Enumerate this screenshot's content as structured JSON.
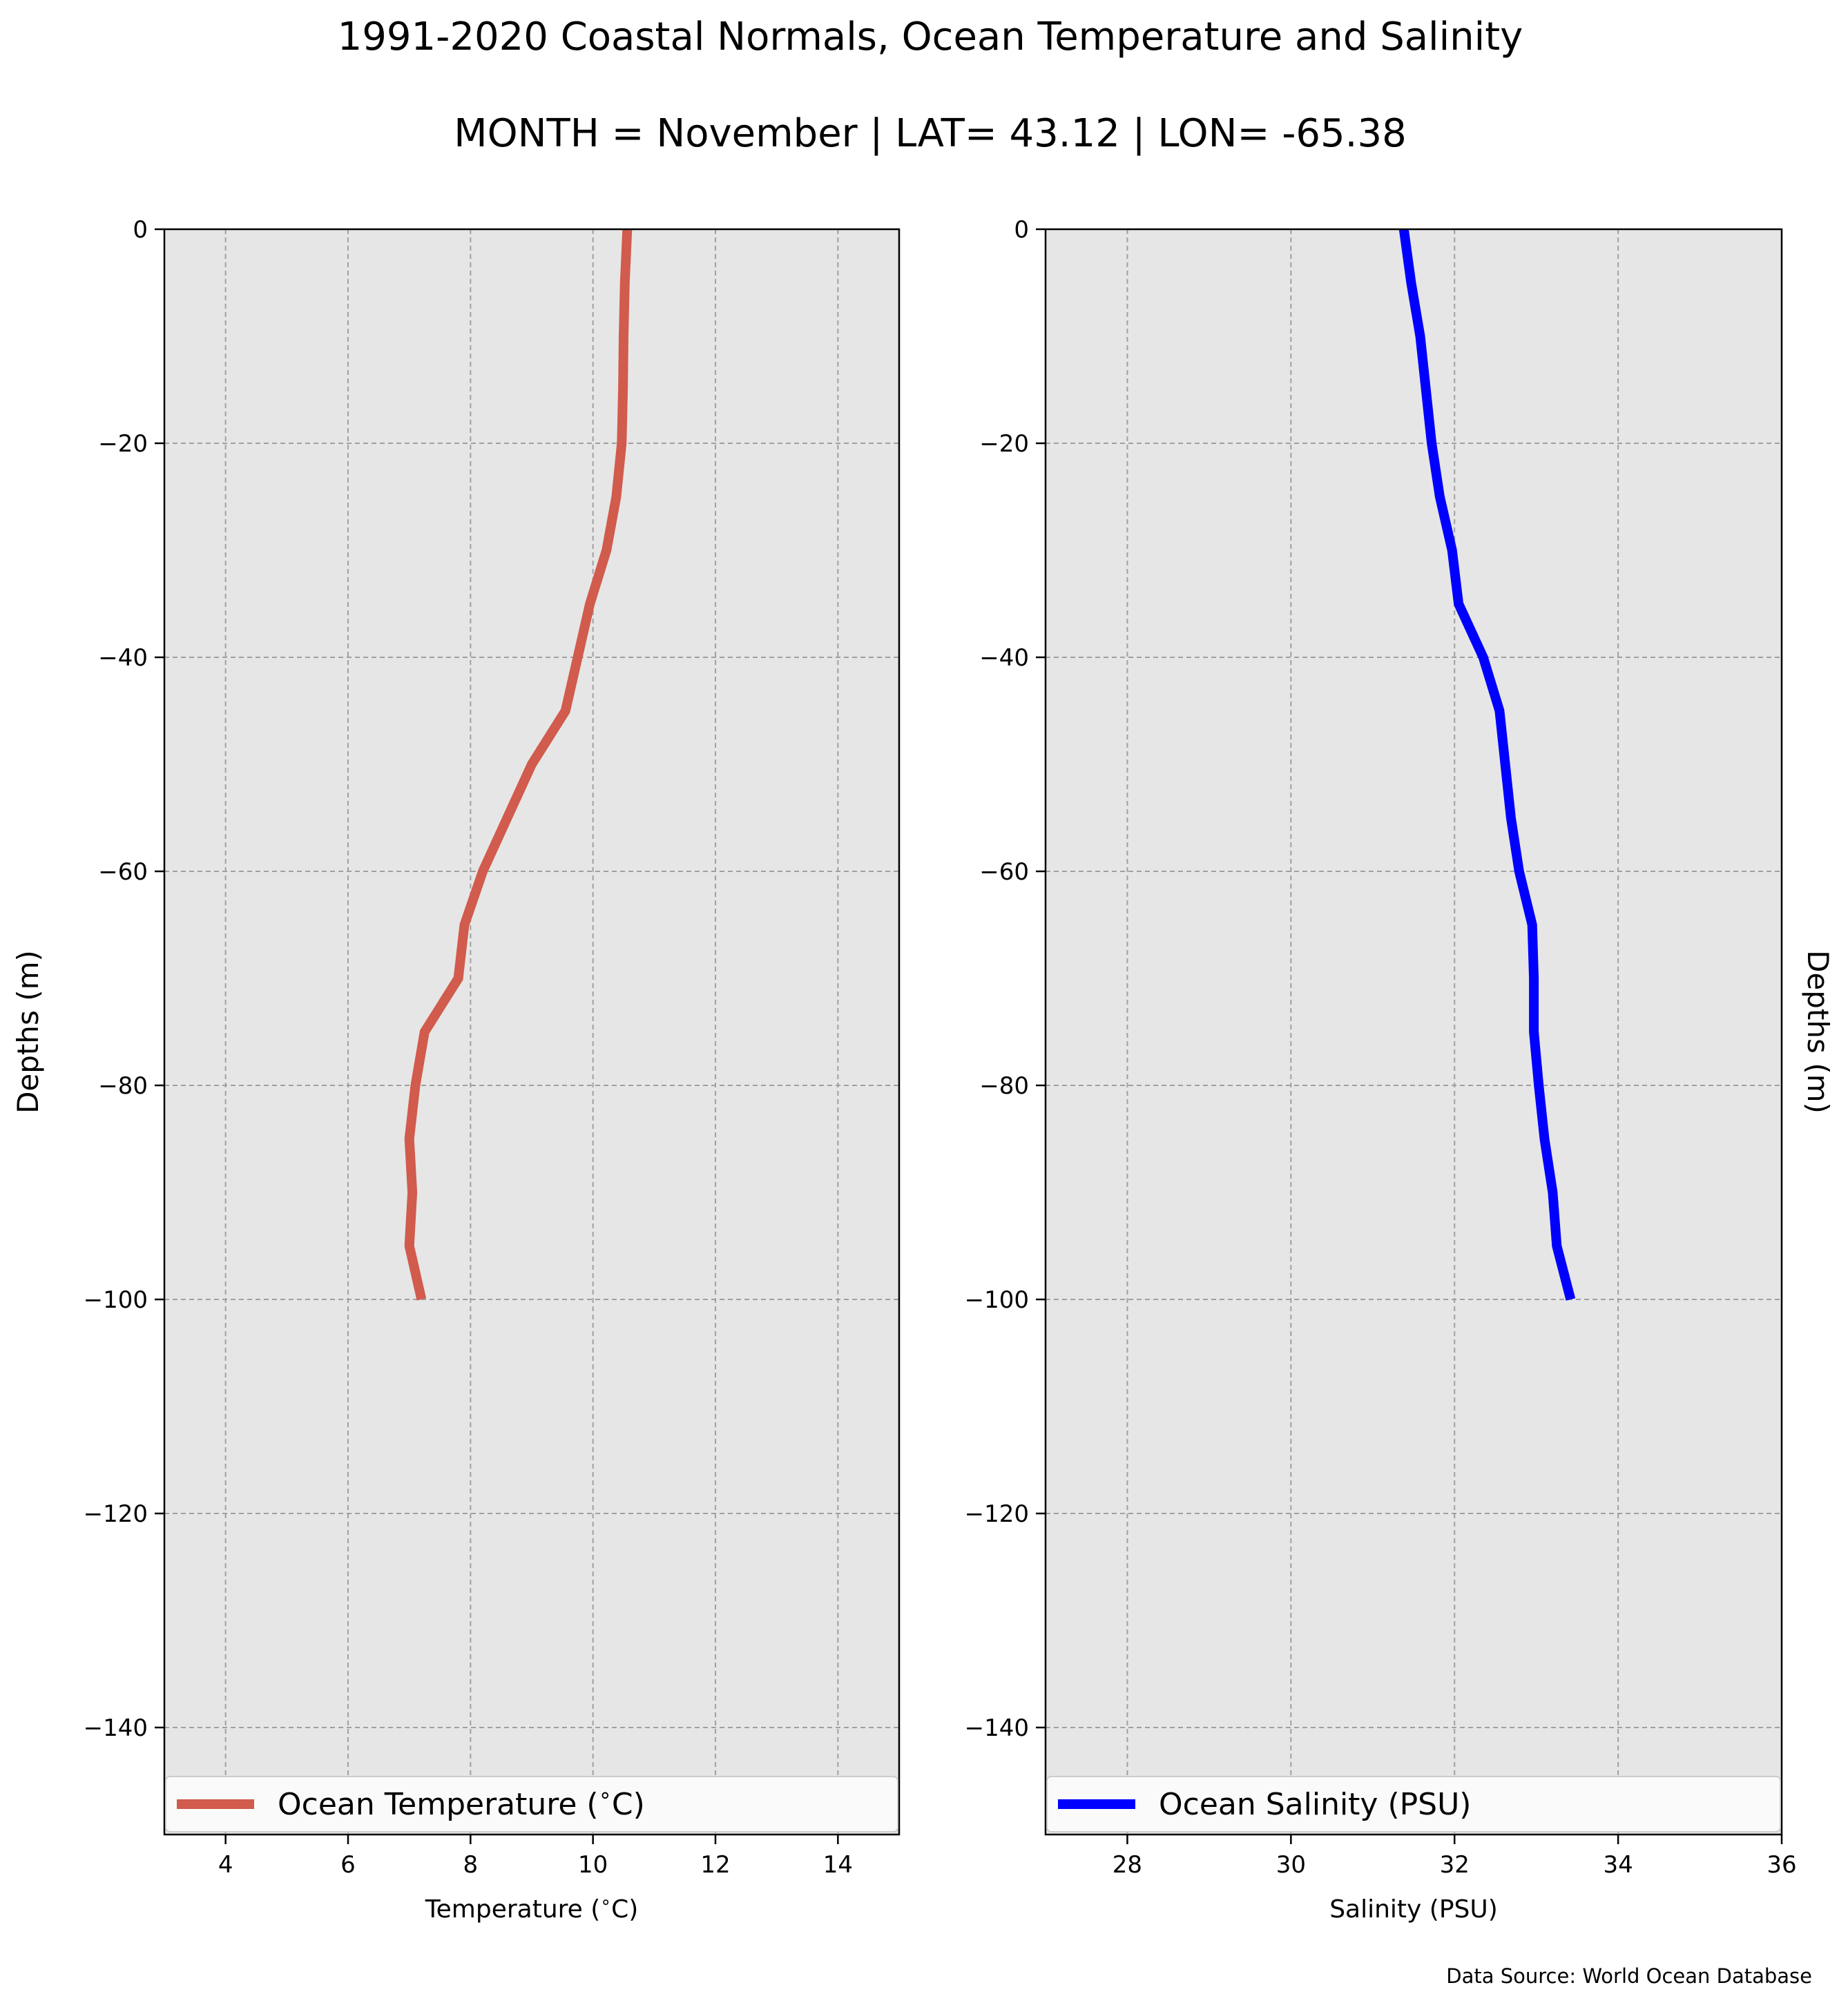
{
  "title": "1991-2020 Coastal Normals, Ocean Temperature and Salinity",
  "subtitle": "MONTH = November | LAT= 43.12 | LON= -65.38",
  "source": "Data Source: World Ocean Database",
  "chart_data": [
    {
      "type": "line",
      "xlabel": "Temperature ($^\\circ$C)",
      "ylabel": "Depths (m)",
      "xlim": [
        3,
        15
      ],
      "ylim": [
        -150,
        0
      ],
      "xticks": [
        "4",
        "6",
        "8",
        "10",
        "12",
        "14"
      ],
      "yticks": [
        "0",
        "−20",
        "−40",
        "−60",
        "−80",
        "−100",
        "−120",
        "−140"
      ],
      "grid": true,
      "legend_position": "lower-center",
      "series": [
        {
          "name": "Ocean Temperature ($^\\circ$C)",
          "color": "#d15b4c",
          "x": [
            10.56,
            10.52,
            10.5,
            10.49,
            10.47,
            10.38,
            10.22,
            9.95,
            9.55,
            9.0,
            8.6,
            8.2,
            7.9,
            7.8,
            7.25,
            7.1,
            7.0,
            7.05,
            7.0,
            7.2
          ],
          "y": [
            0,
            -5,
            -10,
            -15,
            -20,
            -25,
            -30,
            -35,
            -45,
            -50,
            -55,
            -60,
            -65,
            -70,
            -75,
            -80,
            -85,
            -90,
            -95,
            -100
          ]
        }
      ]
    },
    {
      "type": "line",
      "xlabel": "Salinity (PSU)",
      "ylabel": "Depths (m)",
      "xlim": [
        27,
        36
      ],
      "ylim": [
        -150,
        0
      ],
      "xticks": [
        "28",
        "30",
        "32",
        "34",
        "36"
      ],
      "yticks": [
        "0",
        "−20",
        "−40",
        "−60",
        "−80",
        "−100",
        "−120",
        "−140"
      ],
      "grid": true,
      "legend_position": "lower-center",
      "series": [
        {
          "name": "Ocean Salinity (PSU)",
          "color": "#0000ff",
          "x": [
            31.38,
            31.47,
            31.58,
            31.65,
            31.72,
            31.82,
            31.97,
            32.05,
            32.35,
            32.55,
            32.69,
            32.79,
            32.95,
            32.97,
            32.97,
            33.03,
            33.1,
            33.2,
            33.25,
            33.42
          ],
          "y": [
            0,
            -5,
            -10,
            -15,
            -20,
            -25,
            -30,
            -35,
            -40,
            -45,
            -55,
            -60,
            -65,
            -70,
            -75,
            -80,
            -85,
            -90,
            -95,
            -100
          ]
        }
      ]
    }
  ]
}
